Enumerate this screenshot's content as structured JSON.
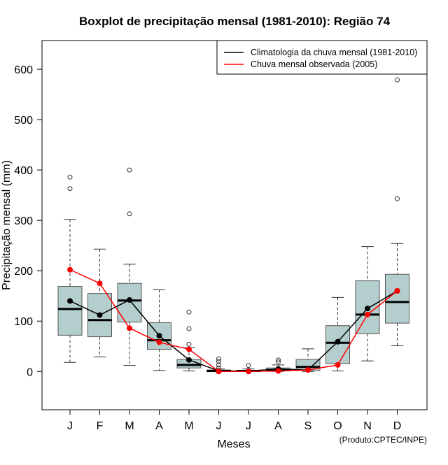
{
  "chart_data": {
    "type": "boxplot",
    "title": "Boxplot de precipitação mensal (1981-2010): Região 74",
    "xlabel": "Meses",
    "ylabel": "Precipitação mensal (mm)",
    "ylim": [
      -76,
      657
    ],
    "yticks": [
      0,
      100,
      200,
      300,
      400,
      500,
      600
    ],
    "categories": [
      "J",
      "F",
      "M",
      "A",
      "M",
      "J",
      "J",
      "A",
      "S",
      "O",
      "N",
      "D"
    ],
    "boxes": [
      {
        "low": 18,
        "q1": 72,
        "median": 124,
        "q3": 169,
        "high": 302,
        "outliers": [
          363,
          386
        ]
      },
      {
        "low": 29,
        "q1": 69,
        "median": 102,
        "q3": 155,
        "high": 243,
        "outliers": []
      },
      {
        "low": 12,
        "q1": 98,
        "median": 141,
        "q3": 175,
        "high": 213,
        "outliers": [
          313,
          400
        ]
      },
      {
        "low": 2,
        "q1": 44,
        "median": 62,
        "q3": 97,
        "high": 162,
        "outliers": []
      },
      {
        "low": 1,
        "q1": 7,
        "median": 13,
        "q3": 24,
        "high": 47,
        "outliers": [
          54,
          85,
          118
        ]
      },
      {
        "low": 0,
        "q1": 0,
        "median": 1,
        "q3": 3,
        "high": 5,
        "outliers": [
          7,
          13,
          20,
          25
        ]
      },
      {
        "low": 0,
        "q1": 0,
        "median": 1,
        "q3": 2,
        "high": 5,
        "outliers": [
          12
        ]
      },
      {
        "low": 0,
        "q1": 1,
        "median": 3,
        "q3": 7,
        "high": 13,
        "outliers": [
          19,
          23
        ]
      },
      {
        "low": 0,
        "q1": 2,
        "median": 9,
        "q3": 24,
        "high": 45,
        "outliers": []
      },
      {
        "low": 1,
        "q1": 16,
        "median": 57,
        "q3": 91,
        "high": 147,
        "outliers": []
      },
      {
        "low": 21,
        "q1": 75,
        "median": 113,
        "q3": 180,
        "high": 248,
        "outliers": []
      },
      {
        "low": 51,
        "q1": 96,
        "median": 138,
        "q3": 193,
        "high": 254,
        "outliers": [
          343,
          579
        ]
      }
    ],
    "series": [
      {
        "name": "Climatologia da chuva mensal (1981-2010)",
        "color": "#000000",
        "values": [
          140,
          112,
          142,
          71,
          23,
          1,
          1,
          5,
          3,
          59,
          125,
          160
        ]
      },
      {
        "name": "Chuva mensal observada (2005)",
        "color": "#ff0000",
        "values": [
          202,
          175,
          86,
          58,
          44,
          0,
          0,
          1,
          3,
          13,
          113,
          160
        ]
      }
    ],
    "box_color": "#b4cdcd",
    "legend_position": "top-right",
    "footer": "(Produto:CPTEC/INPE)"
  }
}
